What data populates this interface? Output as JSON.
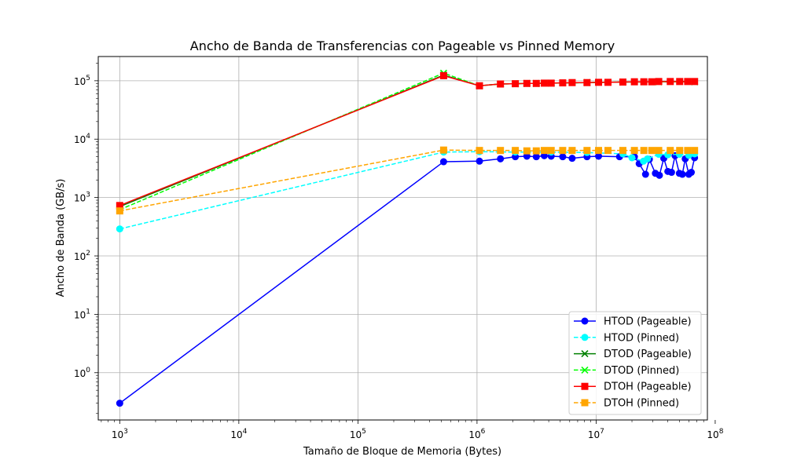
{
  "chart_data": {
    "type": "line",
    "title": "Ancho de Banda de Transferencias con Pageable vs Pinned Memory",
    "xlabel": "Tamaño de Bloque de Memoria (Bytes)",
    "ylabel": "Ancho de Banda (GB/s)",
    "xscale": "log",
    "yscale": "log",
    "xlim": [
      660,
      86000000
    ],
    "ylim": [
      0.155,
      260000
    ],
    "grid": true,
    "legend_position": "lower-right",
    "x_ticks": [
      {
        "base": "10",
        "exp": "3",
        "value": 1000
      },
      {
        "base": "10",
        "exp": "4",
        "value": 10000
      },
      {
        "base": "10",
        "exp": "5",
        "value": 100000
      },
      {
        "base": "10",
        "exp": "6",
        "value": 1000000
      },
      {
        "base": "10",
        "exp": "7",
        "value": 10000000
      },
      {
        "base": "10",
        "exp": "8",
        "value": 100000000
      }
    ],
    "y_ticks": [
      {
        "base": "10",
        "exp": "0",
        "value": 1
      },
      {
        "base": "10",
        "exp": "1",
        "value": 10
      },
      {
        "base": "10",
        "exp": "2",
        "value": 100
      },
      {
        "base": "10",
        "exp": "3",
        "value": 1000
      },
      {
        "base": "10",
        "exp": "4",
        "value": 10000
      },
      {
        "base": "10",
        "exp": "5",
        "value": 100000
      }
    ],
    "series": [
      {
        "name": "HTOD (Pageable)",
        "color": "#0000ff",
        "dash": "solid",
        "marker": "circle",
        "x": [
          1000,
          524288,
          1048576,
          1572864,
          2097152,
          2621440,
          3145728,
          3670016,
          4194304,
          5242880,
          6291456,
          8388608,
          10485760,
          15728640,
          20971520,
          23000000,
          26000000,
          28000000,
          31457280,
          34000000,
          37000000,
          40000000,
          43000000,
          46000000,
          50000000,
          53000000,
          56000000,
          60000000,
          63000000,
          67108864
        ],
        "y": [
          0.3,
          4100,
          4200,
          4600,
          5000,
          5100,
          5000,
          5200,
          5100,
          5000,
          4700,
          5000,
          5100,
          5000,
          5000,
          3800,
          2500,
          4500,
          2600,
          2400,
          4700,
          2800,
          2700,
          5200,
          2600,
          2500,
          4600,
          2500,
          2700,
          4800
        ]
      },
      {
        "name": "HTOD (Pinned)",
        "color": "#00ffff",
        "dash": "dashed",
        "marker": "circle",
        "x": [
          1000,
          524288,
          1048576,
          2097152,
          4194304,
          8388608,
          16777216,
          20000000,
          25000000,
          27000000,
          33554432,
          40000000,
          50000000,
          60000000,
          67108864
        ],
        "y": [
          290,
          6000,
          6100,
          6000,
          6000,
          5900,
          5600,
          4800,
          4200,
          4600,
          5500,
          5400,
          5500,
          5300,
          5600
        ]
      },
      {
        "name": "DTOD (Pageable)",
        "color": "#008000",
        "dash": "solid",
        "marker": "x",
        "x": [
          1000,
          524288,
          1048576,
          1572864,
          2097152,
          2621440,
          3145728,
          4194304,
          8388608,
          16777216,
          33554432,
          67108864
        ],
        "y": [
          700,
          125000,
          82000,
          88000,
          89000,
          90000,
          90000,
          91000,
          93000,
          95000,
          96000,
          96000
        ]
      },
      {
        "name": "DTOD (Pinned)",
        "color": "#00ff00",
        "dash": "dashed",
        "marker": "x",
        "x": [
          1000,
          524288,
          1048576,
          1572864,
          2097152,
          2621440,
          3145728,
          4194304,
          8388608,
          16777216,
          33554432,
          67108864
        ],
        "y": [
          620,
          135000,
          82000,
          88000,
          89000,
          90000,
          90000,
          91000,
          93000,
          95000,
          96000,
          96000
        ]
      },
      {
        "name": "DTOH (Pageable)",
        "color": "#ff0000",
        "dash": "solid",
        "marker": "square",
        "x": [
          1000,
          524288,
          1048576,
          1572864,
          2097152,
          2621440,
          3145728,
          3670016,
          4194304,
          5242880,
          6291456,
          8388608,
          10485760,
          12582912,
          16777216,
          20971520,
          25165824,
          29360128,
          33554432,
          41943040,
          50331648,
          58720256,
          67108864
        ],
        "y": [
          730,
          122000,
          82000,
          88000,
          89000,
          90000,
          90000,
          91000,
          91000,
          92000,
          93000,
          93000,
          94000,
          94000,
          95000,
          96000,
          96000,
          96000,
          97000,
          97000,
          97000,
          97000,
          97000
        ]
      },
      {
        "name": "DTOH (Pinned)",
        "color": "#ffa500",
        "dash": "dashed",
        "marker": "square",
        "x": [
          1000,
          524288,
          1048576,
          1572864,
          2097152,
          2621440,
          3145728,
          3670016,
          4194304,
          5242880,
          6291456,
          8388608,
          10485760,
          12582912,
          16777216,
          20971520,
          25165824,
          29360128,
          33554432,
          41943040,
          50331648,
          58720256,
          67108864
        ],
        "y": [
          590,
          6500,
          6400,
          6400,
          6400,
          6300,
          6300,
          6400,
          6400,
          6400,
          6400,
          6400,
          6400,
          6400,
          6400,
          6400,
          6400,
          6400,
          6400,
          6400,
          6400,
          6400,
          6400
        ]
      }
    ]
  }
}
